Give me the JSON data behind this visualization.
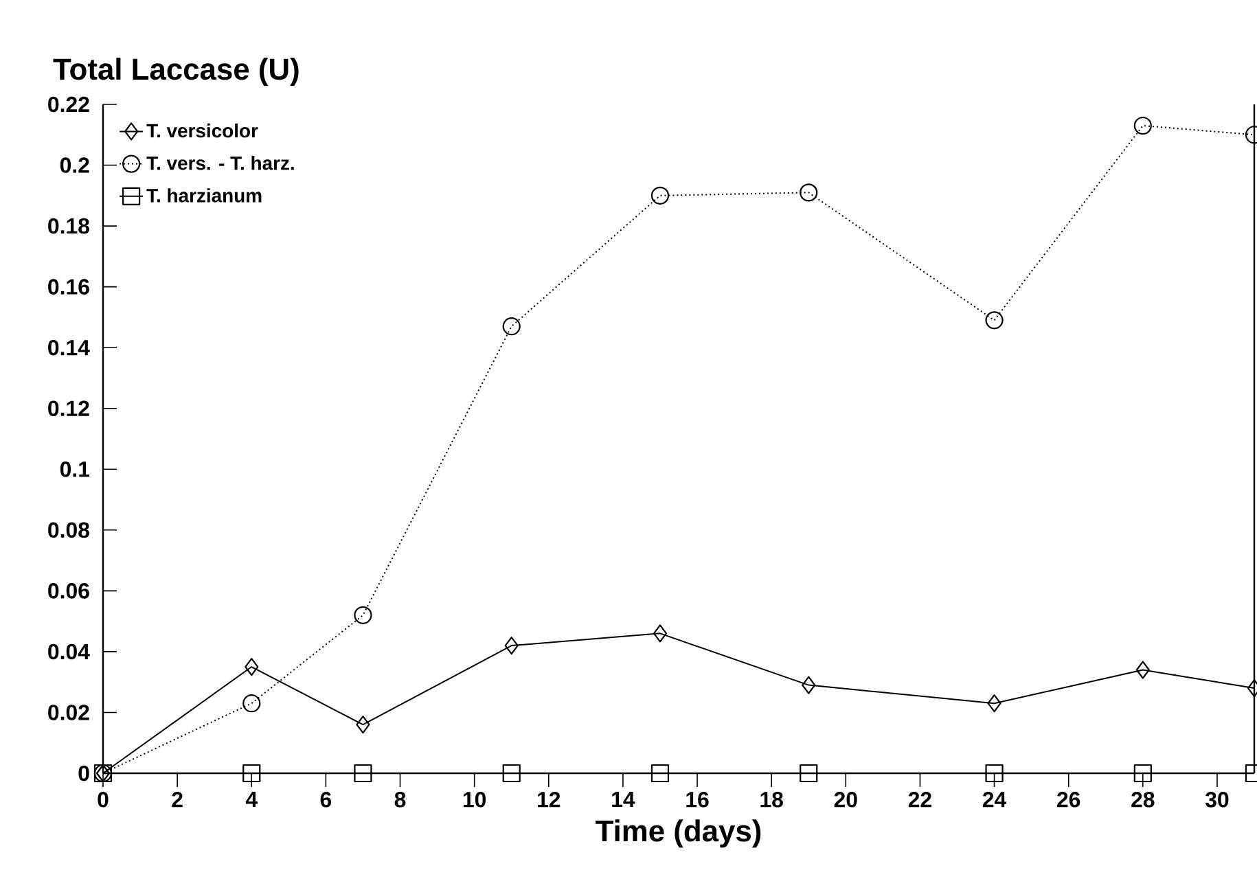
{
  "chart_data": {
    "type": "line",
    "title": "Total Laccase (U)",
    "xlabel": "Time (days)",
    "xlim": [
      0,
      31
    ],
    "ylim": [
      0,
      0.22
    ],
    "xticks": [
      0,
      2,
      4,
      6,
      8,
      10,
      12,
      14,
      16,
      18,
      20,
      22,
      24,
      26,
      28,
      30
    ],
    "yticks": [
      0,
      0.02,
      0.04,
      0.06,
      0.08,
      0.1,
      0.12,
      0.14,
      0.16,
      0.18,
      0.2,
      0.22
    ],
    "legend": "top left",
    "grid": false,
    "series": [
      {
        "name": "T. versicolor",
        "color": "#000000",
        "marker": "diamond",
        "line_style": "solid",
        "x": [
          0,
          4,
          7,
          11,
          15,
          19,
          24,
          28,
          31
        ],
        "values": [
          0,
          0.035,
          0.016,
          0.042,
          0.046,
          0.029,
          0.023,
          0.034,
          0.028
        ]
      },
      {
        "name": "T. vers. - T. harz.",
        "color": "#000000",
        "marker": "circle",
        "line_style": "dotted",
        "x": [
          0,
          4,
          7,
          11,
          15,
          19,
          24,
          28,
          31
        ],
        "values": [
          0,
          0.023,
          0.052,
          0.147,
          0.19,
          0.191,
          0.149,
          0.213,
          0.21
        ]
      },
      {
        "name": "T. harzianum",
        "color": "#000000",
        "marker": "square",
        "line_style": "solid",
        "x": [
          0,
          4,
          7,
          11,
          15,
          19,
          24,
          28,
          31
        ],
        "values": [
          0,
          0,
          0,
          0,
          0,
          0,
          0,
          0,
          0
        ]
      }
    ]
  }
}
